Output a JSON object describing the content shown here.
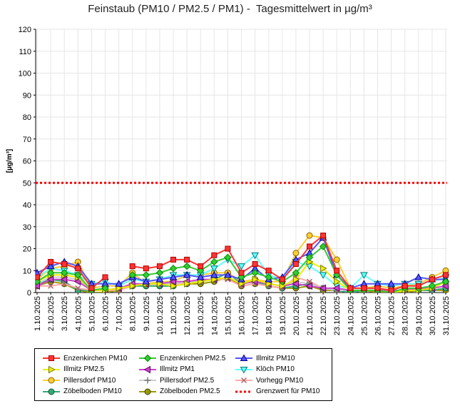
{
  "chart_data": {
    "type": "line",
    "title": "Feinstaub (PM10 / PM2.5 / PM1) -  Tagesmittelwert in µg/m³",
    "xlabel": "",
    "ylabel": "[µg/m³]",
    "ylim": [
      0,
      120
    ],
    "yticks": [
      0,
      10,
      20,
      30,
      40,
      50,
      60,
      70,
      80,
      90,
      100,
      110,
      120
    ],
    "grid": true,
    "legend_position": "bottom-left",
    "categories": [
      "1.10.2025",
      "2.10.2025",
      "3.10.2025",
      "4.10.2025",
      "5.10.2025",
      "6.10.2025",
      "7.10.2025",
      "8.10.2025",
      "9.10.2025",
      "10.10.2025",
      "11.10.2025",
      "12.10.2025",
      "13.10.2025",
      "14.10.2025",
      "15.10.2025",
      "16.10.2025",
      "17.10.2025",
      "18.10.2025",
      "19.10.2025",
      "20.10.2025",
      "21.10.2025",
      "22.10.2025",
      "23.10.2025",
      "24.10.2025",
      "25.10.2025",
      "26.10.2025",
      "27.10.2025",
      "28.10.2025",
      "29.10.2025",
      "30.10.2025",
      "31.10.2025"
    ],
    "threshold": {
      "name": "Grenzwert für PM10",
      "value": 50,
      "color": "#ff0000"
    },
    "series": [
      {
        "name": "Enzenkirchen PM10",
        "color": "#ff3333",
        "stroke": "#aa0000",
        "marker": "square",
        "values": [
          7,
          14,
          13,
          11,
          2,
          7,
          null,
          12,
          11,
          12,
          15,
          15,
          12,
          17,
          20,
          9,
          13,
          10,
          6,
          13,
          21,
          26,
          10,
          2,
          2,
          2,
          1,
          3,
          3,
          6,
          8
        ]
      },
      {
        "name": "Enzenkirchen PM2.5",
        "color": "#33cc33",
        "stroke": "#008800",
        "marker": "diamond",
        "values": [
          5,
          9,
          9,
          8,
          1,
          2,
          null,
          8,
          8,
          9,
          11,
          12,
          10,
          14,
          16,
          7,
          9,
          7,
          5,
          9,
          16,
          21,
          8,
          1,
          1,
          1,
          0,
          2,
          2,
          3,
          5
        ]
      },
      {
        "name": "Illmitz PM10",
        "color": "#5555ff",
        "stroke": "#000088",
        "marker": "triangle-up",
        "values": [
          9,
          12,
          14,
          12,
          4,
          4,
          4,
          7,
          5,
          6,
          7,
          8,
          7,
          8,
          8,
          6,
          11,
          6,
          7,
          15,
          18,
          25,
          8,
          2,
          4,
          4,
          4,
          4,
          7,
          6,
          6
        ]
      },
      {
        "name": "Illmitz PM2.5",
        "color": "#eeee00",
        "stroke": "#777700",
        "marker": "triangle-right",
        "values": [
          5,
          8,
          8,
          7,
          1,
          1,
          2,
          3,
          4,
          4,
          3,
          4,
          5,
          6,
          7,
          4,
          6,
          4,
          3,
          6,
          14,
          11,
          5,
          1,
          1,
          1,
          0,
          1,
          1,
          2,
          5
        ]
      },
      {
        "name": "Illmitz PM1",
        "color": "#cc44cc",
        "stroke": "#660066",
        "marker": "triangle-left",
        "values": [
          3,
          6,
          6,
          5,
          1,
          1,
          2,
          4,
          4,
          4,
          5,
          5,
          6,
          6,
          7,
          4,
          5,
          4,
          3,
          4,
          3,
          2,
          2,
          1,
          1,
          1,
          1,
          1,
          2,
          2,
          3
        ]
      },
      {
        "name": "Klöch PM10",
        "color": "#66ffff",
        "stroke": "#007777",
        "marker": "triangle-down",
        "values": [
          7,
          11,
          10,
          8,
          4,
          5,
          3,
          6,
          5,
          6,
          8,
          8,
          8,
          11,
          15,
          12,
          17,
          8,
          6,
          14,
          12,
          8,
          3,
          2,
          8,
          4,
          3,
          4,
          4,
          5,
          7
        ]
      },
      {
        "name": "Pillersdorf PM10",
        "color": "#ffcc33",
        "stroke": "#886600",
        "marker": "circle",
        "values": [
          6,
          11,
          12,
          14,
          2,
          3,
          3,
          9,
          4,
          5,
          5,
          8,
          8,
          9,
          9,
          5,
          6,
          5,
          5,
          18,
          26,
          25,
          15,
          2,
          2,
          3,
          2,
          3,
          4,
          7,
          10
        ]
      },
      {
        "name": "Pillersdorf PM2.5",
        "color": "#cccccc",
        "stroke": "#777777",
        "marker": "plus",
        "values": [
          4,
          7,
          7,
          6,
          1,
          1,
          2,
          4,
          4,
          4,
          4,
          5,
          5,
          6,
          7,
          4,
          5,
          4,
          3,
          5,
          4,
          2,
          1,
          1,
          1,
          1,
          1,
          1,
          2,
          2,
          3
        ]
      },
      {
        "name": "Vorhegg PM10",
        "color": "#ffaaaa",
        "stroke": "#aa6666",
        "marker": "cross",
        "values": [
          3,
          3,
          4,
          2,
          1,
          1,
          1,
          3,
          4,
          4,
          4,
          4,
          5,
          6,
          6,
          3,
          4,
          3,
          2,
          7,
          5,
          2,
          1,
          1,
          1,
          1,
          1,
          1,
          2,
          2,
          3
        ]
      },
      {
        "name": "Zöbelboden PM10",
        "color": "#33aa77",
        "stroke": "#115533",
        "marker": "circle",
        "values": [
          4,
          6,
          5,
          1,
          1,
          1,
          2,
          3,
          3,
          3,
          3,
          4,
          5,
          6,
          9,
          4,
          5,
          3,
          2,
          3,
          4,
          2,
          1,
          0,
          1,
          1,
          0,
          1,
          1,
          1,
          2
        ]
      },
      {
        "name": "Zöbelboden PM2.5",
        "color": "#999900",
        "stroke": "#444400",
        "marker": "circle",
        "values": [
          3,
          5,
          4,
          1,
          0,
          0,
          1,
          3,
          3,
          3,
          3,
          4,
          4,
          5,
          7,
          3,
          4,
          3,
          2,
          2,
          3,
          1,
          1,
          0,
          1,
          0,
          0,
          0,
          1,
          1,
          1
        ]
      }
    ]
  }
}
